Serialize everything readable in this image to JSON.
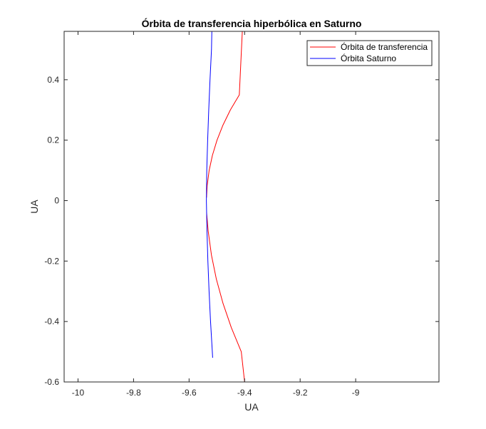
{
  "chart_data": {
    "type": "line",
    "title": "Órbita de transferencia hiperbólica en Saturno",
    "xlabel": "UA",
    "ylabel": "UA",
    "xlim": [
      -10.05,
      -8.7
    ],
    "ylim": [
      -0.6,
      0.56
    ],
    "xticks": [
      -10,
      -9.8,
      -9.6,
      -9.4,
      -9.2,
      -9
    ],
    "yticks": [
      -0.6,
      -0.4,
      -0.2,
      0,
      0.2,
      0.4
    ],
    "grid": false,
    "legend_position": "top-right",
    "series": [
      {
        "name": "Órbita de transferencia",
        "color": "#ff0000",
        "segments": [
          {
            "x": [
              -9.5371,
              -9.5348,
              -9.5277,
              -9.5159,
              -9.4994,
              -9.4779,
              -9.4513,
              -9.4191,
              -9.408
            ],
            "y": [
              0.01,
              0.05,
              0.1,
              0.15,
              0.2,
              0.25,
              0.3,
              0.35,
              0.565
            ]
          },
          {
            "x": [
              -9.5369,
              -9.5313,
              -9.5195,
              -9.5017,
              -9.4778,
              -9.4479,
              -9.412,
              -9.4
            ],
            "y": [
              -0.04,
              -0.1,
              -0.18,
              -0.26,
              -0.34,
              -0.42,
              -0.5,
              -0.6
            ]
          }
        ]
      },
      {
        "name": "Órbita Saturno",
        "color": "#0000ff",
        "segments": [
          {
            "x": [
              -9.5377,
              -9.5355,
              -9.5323,
              -9.528,
              -9.5227,
              -9.5163,
              -9.5151
            ],
            "y": [
              0.0,
              -0.1,
              -0.2,
              -0.3,
              -0.4,
              -0.5,
              -0.52
            ]
          },
          {
            "x": [
              -9.5377,
              -9.5363,
              -9.5331,
              -9.5292,
              -9.5246,
              -9.5193,
              -9.518
            ],
            "y": [
              0.0,
              0.1,
              0.2,
              0.3,
              0.4,
              0.5,
              0.56
            ]
          }
        ]
      }
    ]
  }
}
